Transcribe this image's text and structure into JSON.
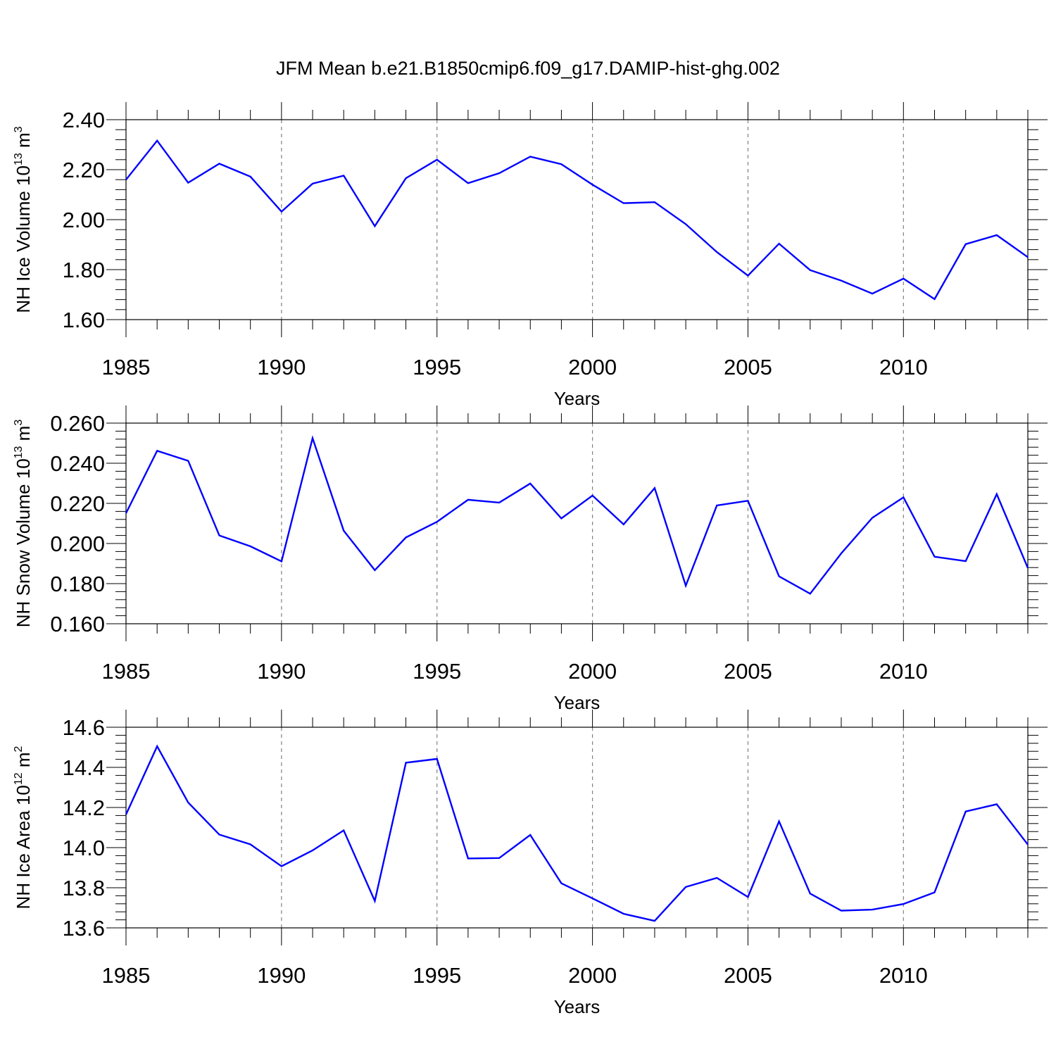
{
  "title": "JFM Mean b.e21.B1850cmip6.f09_g17.DAMIP-hist-ghg.002",
  "colors": {
    "line": "#0000ff",
    "axis": "#000000",
    "grid": "#808080"
  },
  "chart_data": [
    {
      "type": "line",
      "ylabel": {
        "text": "NH Ice Volume 10",
        "exponent": "13",
        "unit": " m",
        "unit_exponent": "3"
      },
      "xlabel": "Years",
      "xlim": [
        1985,
        2014
      ],
      "ylim": [
        1.6,
        2.4
      ],
      "yticks": [
        1.6,
        1.8,
        2.0,
        2.2,
        2.4
      ],
      "ytick_labels": [
        "1.60",
        "1.80",
        "2.00",
        "2.20",
        "2.40"
      ],
      "xticks": [
        1985,
        1990,
        1995,
        2000,
        2005,
        2010
      ],
      "xtick_labels": [
        "1985",
        "1990",
        "1995",
        "2000",
        "2005",
        "2010"
      ],
      "grid_x": [
        1990,
        1995,
        2000,
        2005,
        2010
      ],
      "x": [
        1985,
        1986,
        1987,
        1988,
        1989,
        1990,
        1991,
        1992,
        1993,
        1994,
        1995,
        1996,
        1997,
        1998,
        1999,
        2000,
        2001,
        2002,
        2003,
        2004,
        2005,
        2006,
        2007,
        2008,
        2009,
        2010,
        2011,
        2012,
        2013,
        2014
      ],
      "values": [
        2.16,
        2.316,
        2.148,
        2.224,
        2.172,
        2.032,
        2.144,
        2.176,
        1.974,
        2.166,
        2.24,
        2.146,
        2.186,
        2.252,
        2.222,
        2.14,
        2.066,
        2.07,
        1.982,
        1.87,
        1.776,
        1.904,
        1.798,
        1.756,
        1.704,
        1.764,
        1.682,
        1.902,
        1.938,
        1.85
      ]
    },
    {
      "type": "line",
      "ylabel": {
        "text": "NH Snow Volume 10",
        "exponent": "13",
        "unit": " m",
        "unit_exponent": "3"
      },
      "xlabel": "Years",
      "xlim": [
        1985,
        2014
      ],
      "ylim": [
        0.16,
        0.26
      ],
      "yticks": [
        0.16,
        0.18,
        0.2,
        0.22,
        0.24,
        0.26
      ],
      "ytick_labels": [
        "0.160",
        "0.180",
        "0.200",
        "0.220",
        "0.240",
        "0.260"
      ],
      "xticks": [
        1985,
        1990,
        1995,
        2000,
        2005,
        2010
      ],
      "xtick_labels": [
        "1985",
        "1990",
        "1995",
        "2000",
        "2005",
        "2010"
      ],
      "grid_x": [
        1990,
        1995,
        2000,
        2005,
        2010
      ],
      "x": [
        1985,
        1986,
        1987,
        1988,
        1989,
        1990,
        1991,
        1992,
        1993,
        1994,
        1995,
        1996,
        1997,
        1998,
        1999,
        2000,
        2001,
        2002,
        2003,
        2004,
        2005,
        2006,
        2007,
        2008,
        2009,
        2010,
        2011,
        2012,
        2013,
        2014
      ],
      "values": [
        0.2151,
        0.2462,
        0.2412,
        0.204,
        0.1986,
        0.1911,
        0.2525,
        0.2064,
        0.1867,
        0.203,
        0.2108,
        0.2218,
        0.2204,
        0.2299,
        0.2125,
        0.2239,
        0.2095,
        0.2276,
        0.179,
        0.219,
        0.2213,
        0.1836,
        0.175,
        0.1951,
        0.2128,
        0.223,
        0.1934,
        0.1912,
        0.2246,
        0.1878
      ]
    },
    {
      "type": "line",
      "ylabel": {
        "text": "NH Ice Area 10",
        "exponent": "12",
        "unit": " m",
        "unit_exponent": "2"
      },
      "xlabel": "Years",
      "xlim": [
        1985,
        2014
      ],
      "ylim": [
        13.6,
        14.6
      ],
      "yticks": [
        13.6,
        13.8,
        14.0,
        14.2,
        14.4,
        14.6
      ],
      "ytick_labels": [
        "13.6",
        "13.8",
        "14.0",
        "14.2",
        "14.4",
        "14.6"
      ],
      "xticks": [
        1985,
        1990,
        1995,
        2000,
        2005,
        2010
      ],
      "xtick_labels": [
        "1985",
        "1990",
        "1995",
        "2000",
        "2005",
        "2010"
      ],
      "grid_x": [
        1990,
        1995,
        2000,
        2005,
        2010
      ],
      "x": [
        1985,
        1986,
        1987,
        1988,
        1989,
        1990,
        1991,
        1992,
        1993,
        1994,
        1995,
        1996,
        1997,
        1998,
        1999,
        2000,
        2001,
        2002,
        2003,
        2004,
        2005,
        2006,
        2007,
        2008,
        2009,
        2010,
        2011,
        2012,
        2013,
        2014
      ],
      "values": [
        14.165,
        14.505,
        14.225,
        14.065,
        14.016,
        13.907,
        13.986,
        14.086,
        13.734,
        14.423,
        14.442,
        13.946,
        13.948,
        14.063,
        13.822,
        13.747,
        13.67,
        13.635,
        13.804,
        13.849,
        13.754,
        14.131,
        13.771,
        13.686,
        13.691,
        13.719,
        13.777,
        14.18,
        14.216,
        14.015
      ]
    }
  ]
}
